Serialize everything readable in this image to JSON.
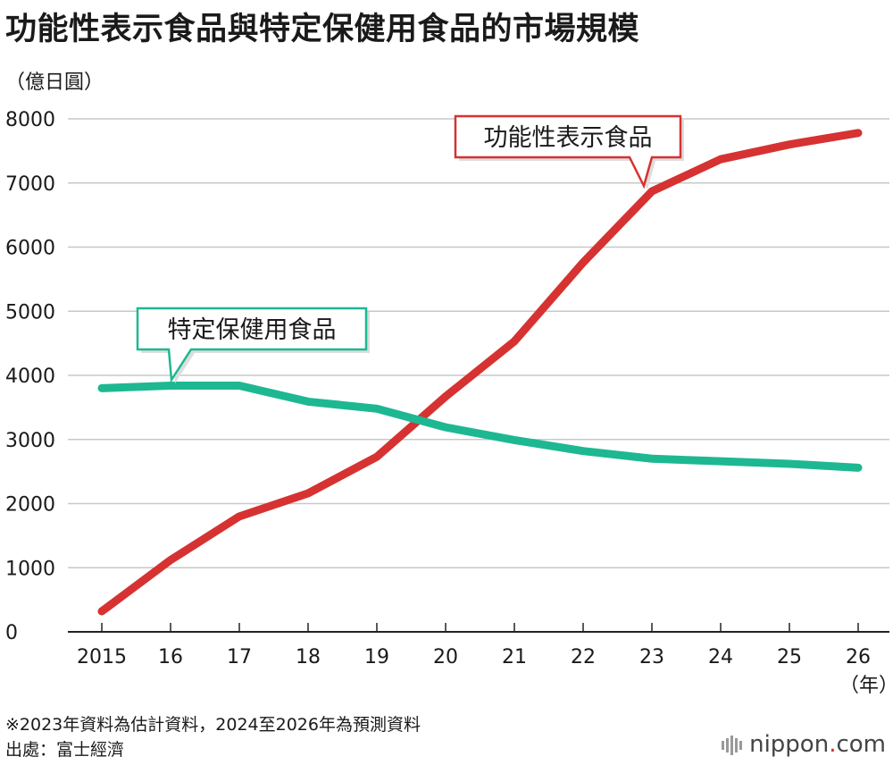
{
  "header": {
    "title": "功能性表示食品與特定保健用食品的市場規模",
    "unit": "（億日圓）"
  },
  "chart_data": {
    "type": "line",
    "title": "功能性表示食品與特定保健用食品的市場規模",
    "ylabel": "（億日圓）",
    "xlabel": "（年）",
    "x": [
      "2015",
      "16",
      "17",
      "18",
      "19",
      "20",
      "21",
      "22",
      "23",
      "24",
      "25",
      "26"
    ],
    "ylim": [
      0,
      8000
    ],
    "yticks": [
      0,
      1000,
      2000,
      3000,
      4000,
      5000,
      6000,
      7000,
      8000
    ],
    "grid": true,
    "series": [
      {
        "name": "功能性表示食品",
        "color": "#d63232",
        "values": [
          320,
          1120,
          1800,
          2160,
          2730,
          3670,
          4530,
          5760,
          6870,
          7370,
          7600,
          7780
        ]
      },
      {
        "name": "特定保健用食品",
        "color": "#1db892",
        "values": [
          3800,
          3840,
          3840,
          3590,
          3480,
          3190,
          2990,
          2820,
          2700,
          2660,
          2620,
          2560
        ]
      }
    ]
  },
  "footer": {
    "note": "※2023年資料為估計資料，2024至2026年為預測資料",
    "source": "出處：富士經濟",
    "brand_name": "nippon",
    "brand_dot": ".",
    "brand_tld": "com"
  }
}
